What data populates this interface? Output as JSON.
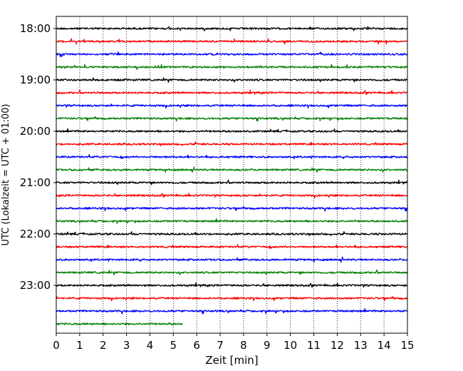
{
  "chart_data": {
    "type": "line",
    "title": "",
    "xlabel": "Zeit  [min]",
    "ylabel": "UTC (Lokalzeit = UTC + 01:00)",
    "xlim": [
      0,
      15
    ],
    "x_ticks": [
      "0",
      "1",
      "2",
      "3",
      "4",
      "5",
      "6",
      "7",
      "8",
      "9",
      "10",
      "11",
      "12",
      "13",
      "14",
      "15"
    ],
    "y_tick_labels": [
      "18:00",
      "19:00",
      "20:00",
      "21:00",
      "22:00",
      "23:00"
    ],
    "grid": "vertical dotted",
    "trace_colors": [
      "#000000",
      "#ff0000",
      "#0000ff",
      "#008000"
    ],
    "traces": [
      {
        "start": "18:00",
        "color": "#000000",
        "x_end": 15
      },
      {
        "start": "18:15",
        "color": "#ff0000",
        "x_end": 15
      },
      {
        "start": "18:30",
        "color": "#0000ff",
        "x_end": 15
      },
      {
        "start": "18:45",
        "color": "#008000",
        "x_end": 15
      },
      {
        "start": "19:00",
        "color": "#000000",
        "x_end": 15
      },
      {
        "start": "19:15",
        "color": "#ff0000",
        "x_end": 15
      },
      {
        "start": "19:30",
        "color": "#0000ff",
        "x_end": 15
      },
      {
        "start": "19:45",
        "color": "#008000",
        "x_end": 15
      },
      {
        "start": "20:00",
        "color": "#000000",
        "x_end": 15
      },
      {
        "start": "20:15",
        "color": "#ff0000",
        "x_end": 15
      },
      {
        "start": "20:30",
        "color": "#0000ff",
        "x_end": 15
      },
      {
        "start": "20:45",
        "color": "#008000",
        "x_end": 15
      },
      {
        "start": "21:00",
        "color": "#000000",
        "x_end": 15
      },
      {
        "start": "21:15",
        "color": "#ff0000",
        "x_end": 15
      },
      {
        "start": "21:30",
        "color": "#0000ff",
        "x_end": 15
      },
      {
        "start": "21:45",
        "color": "#008000",
        "x_end": 15
      },
      {
        "start": "22:00",
        "color": "#000000",
        "x_end": 15
      },
      {
        "start": "22:15",
        "color": "#ff0000",
        "x_end": 15
      },
      {
        "start": "22:30",
        "color": "#0000ff",
        "x_end": 15
      },
      {
        "start": "22:45",
        "color": "#008000",
        "x_end": 15
      },
      {
        "start": "23:00",
        "color": "#000000",
        "x_end": 15
      },
      {
        "start": "23:15",
        "color": "#ff0000",
        "x_end": 15
      },
      {
        "start": "23:30",
        "color": "#0000ff",
        "x_end": 15
      },
      {
        "start": "23:45",
        "color": "#008000",
        "x_end": 5.4
      }
    ]
  }
}
